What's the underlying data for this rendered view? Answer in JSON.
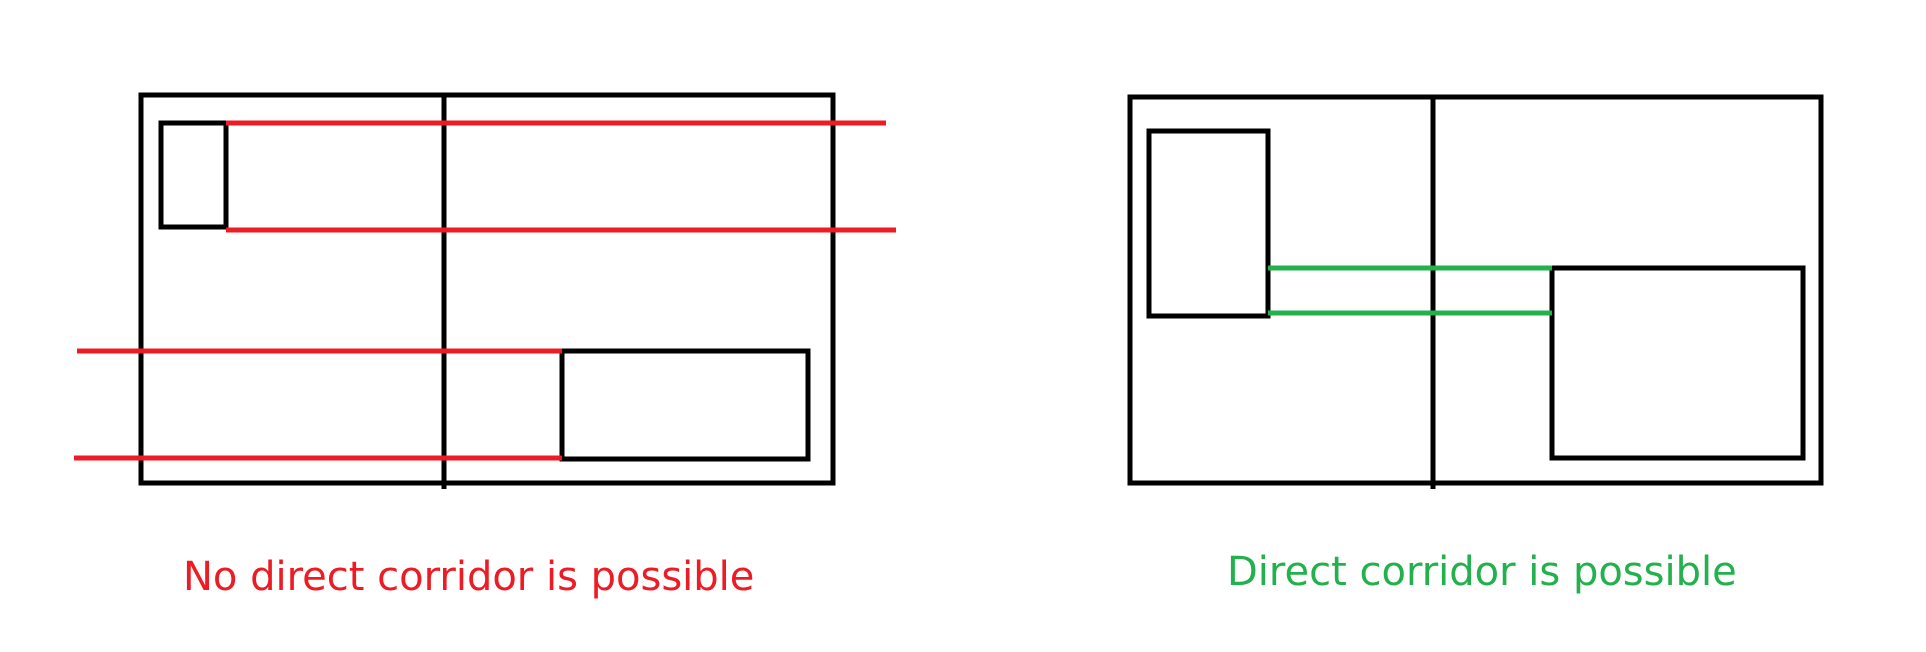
{
  "captions": {
    "no_corridor": "No direct corridor is possible",
    "corridor": "Direct corridor is possible"
  },
  "colors": {
    "outline": "#000000",
    "negative": "#ed1c24",
    "positive": "#22b14c",
    "background": "#ffffff"
  }
}
